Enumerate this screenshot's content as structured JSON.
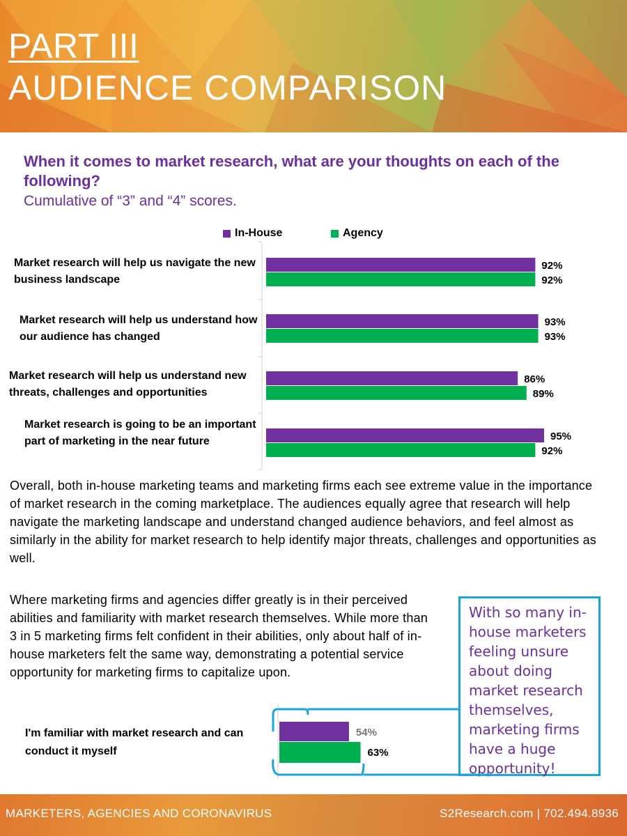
{
  "header": {
    "part": "PART III",
    "title": "AUDIENCE COMPARISON"
  },
  "question": {
    "text": "When it comes to market research, what are your thoughts on each of the following?",
    "subtitle": "Cumulative of “3” and “4” scores."
  },
  "colors": {
    "in_house": "#7030a0",
    "agency": "#00b050",
    "callout_border": "#1aa3dc",
    "accent_text": "#6b2f9e"
  },
  "chart_data": [
    {
      "type": "bar",
      "orientation": "horizontal",
      "categories": [
        "Market research will help us navigate the new business landscape",
        "Market research will help us understand how our audience has changed",
        "Market research will help us understand new threats, challenges and opportunities",
        "Market research is going to be an important part of marketing in the near future"
      ],
      "series": [
        {
          "name": "In-House",
          "values": [
            92,
            93,
            86,
            95
          ],
          "labels": [
            "92%",
            "93%",
            "86%",
            "95%"
          ]
        },
        {
          "name": "Agency",
          "values": [
            92,
            93,
            89,
            92
          ],
          "labels": [
            "92%",
            "93%",
            "89%",
            "92%"
          ]
        }
      ],
      "legend": "top",
      "grid": false,
      "xlim": [
        0,
        100
      ]
    },
    {
      "type": "bar",
      "orientation": "horizontal",
      "categories": [
        "I'm familiar with market research and can conduct it myself"
      ],
      "series": [
        {
          "values": [
            54
          ],
          "labels": [
            "54%"
          ]
        },
        {
          "values": [
            63
          ],
          "labels": [
            "63%"
          ]
        }
      ],
      "legend": "none",
      "grid": false
    }
  ],
  "paragraphs": [
    "Overall, both in-house marketing teams and marketing firms each see extreme value in the importance of market research in the coming marketplace. The audiences equally agree that research will help navigate the marketing landscape and understand changed audience behaviors, and feel almost as similarly in the ability for market research to help identify major threats, challenges and opportunities as well.",
    "Where marketing firms and agencies differ greatly is in their perceived abilities and familiarity with market research themselves. While more than 3 in 5 marketing firms felt confident in their abilities, only about half of in-house marketers felt the same way, demonstrating a potential service opportunity for marketing firms to capitalize upon."
  ],
  "callout": {
    "text": "With so many in-house marketers feeling unsure about doing market research themselves, marketing firms have a huge opportunity!"
  },
  "footer": {
    "left": "MARKETERS, AGENCIES AND CORONAVIRUS",
    "right": "S2Research.com | 702.494.8936"
  }
}
